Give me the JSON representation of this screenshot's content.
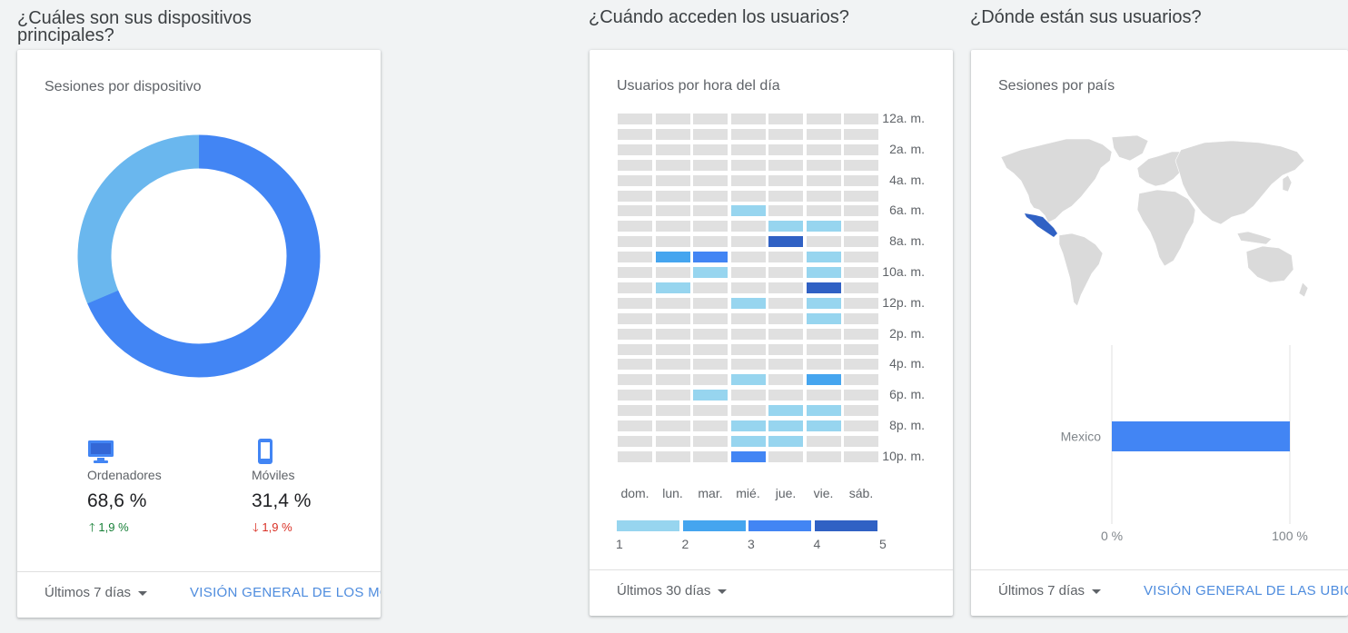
{
  "devices_section": {
    "title": "¿Cuáles son sus dispositivos principales?",
    "card_title": "Sesiones por dispositivo",
    "donut": {
      "desktop_share": 0.686,
      "mobile_share": 0.314,
      "colors": {
        "desktop": "#4285f4",
        "mobile": "#6ab7ee"
      }
    },
    "desktop": {
      "icon": "desktop-icon",
      "label": "Ordenadores",
      "value": "68,6 %",
      "change": "1,9 %",
      "direction": "up"
    },
    "mobile": {
      "icon": "mobile-icon",
      "label": "Móviles",
      "value": "31,4 %",
      "change": "1,9 %",
      "direction": "down"
    },
    "footer": {
      "range": "Últimos 7 días",
      "link": "VISIÓN GENERAL DE LOS MÓVILES"
    }
  },
  "time_section": {
    "title": "¿Cuándo acceden los usuarios?",
    "card_title": "Usuarios por hora del día",
    "hour_labels": [
      "12a. m.",
      "2a. m.",
      "4a. m.",
      "6a. m.",
      "8a. m.",
      "10a. m.",
      "12p. m.",
      "2p. m.",
      "4p. m.",
      "6p. m.",
      "8p. m.",
      "10p. m."
    ],
    "day_labels": [
      "dom.",
      "lun.",
      "mar.",
      "mié.",
      "jue.",
      "vie.",
      "sáb."
    ],
    "level_colors": [
      "#e0e0e0",
      "#97d5ef",
      "#45a5ef",
      "#4285f4",
      "#3061c4"
    ],
    "grid_levels": [
      [
        0,
        0,
        0,
        0,
        0,
        0,
        0
      ],
      [
        0,
        0,
        0,
        0,
        0,
        0,
        0
      ],
      [
        0,
        0,
        0,
        0,
        0,
        0,
        0
      ],
      [
        0,
        0,
        0,
        0,
        0,
        0,
        0
      ],
      [
        0,
        0,
        0,
        0,
        0,
        0,
        0
      ],
      [
        0,
        0,
        0,
        0,
        0,
        0,
        0
      ],
      [
        0,
        0,
        0,
        1,
        0,
        0,
        0
      ],
      [
        0,
        0,
        0,
        0,
        1,
        1,
        0
      ],
      [
        0,
        0,
        0,
        0,
        4,
        0,
        0
      ],
      [
        0,
        2,
        3,
        0,
        0,
        1,
        0
      ],
      [
        0,
        0,
        1,
        0,
        0,
        1,
        0
      ],
      [
        0,
        1,
        0,
        0,
        0,
        4,
        0
      ],
      [
        0,
        0,
        0,
        1,
        0,
        1,
        0
      ],
      [
        0,
        0,
        0,
        0,
        0,
        1,
        0
      ],
      [
        0,
        0,
        0,
        0,
        0,
        0,
        0
      ],
      [
        0,
        0,
        0,
        0,
        0,
        0,
        0
      ],
      [
        0,
        0,
        0,
        0,
        0,
        0,
        0
      ],
      [
        0,
        0,
        0,
        1,
        0,
        2,
        0
      ],
      [
        0,
        0,
        1,
        0,
        0,
        0,
        0
      ],
      [
        0,
        0,
        0,
        0,
        1,
        1,
        0
      ],
      [
        0,
        0,
        0,
        1,
        1,
        1,
        0
      ],
      [
        0,
        0,
        0,
        1,
        1,
        0,
        0
      ],
      [
        0,
        0,
        0,
        3,
        0,
        0,
        0
      ]
    ],
    "legend_numbers": [
      "1",
      "2",
      "3",
      "4",
      "5"
    ],
    "footer": {
      "range": "Últimos 30 días"
    }
  },
  "location_section": {
    "title": "¿Dónde están sus usuarios?",
    "card_title": "Sesiones por país",
    "map_colors": {
      "land": "#dadada",
      "highlight": "#3061c4"
    },
    "chart_data": {
      "type": "bar",
      "orientation": "horizontal",
      "categories": [
        "Mexico"
      ],
      "values": [
        100
      ],
      "x_ticks": [
        "0 %",
        "100 %"
      ],
      "xlim": [
        0,
        100
      ],
      "color": "#4285f4"
    },
    "footer": {
      "range": "Últimos 7 días",
      "link": "VISIÓN GENERAL DE LAS UBICACIONES"
    }
  }
}
